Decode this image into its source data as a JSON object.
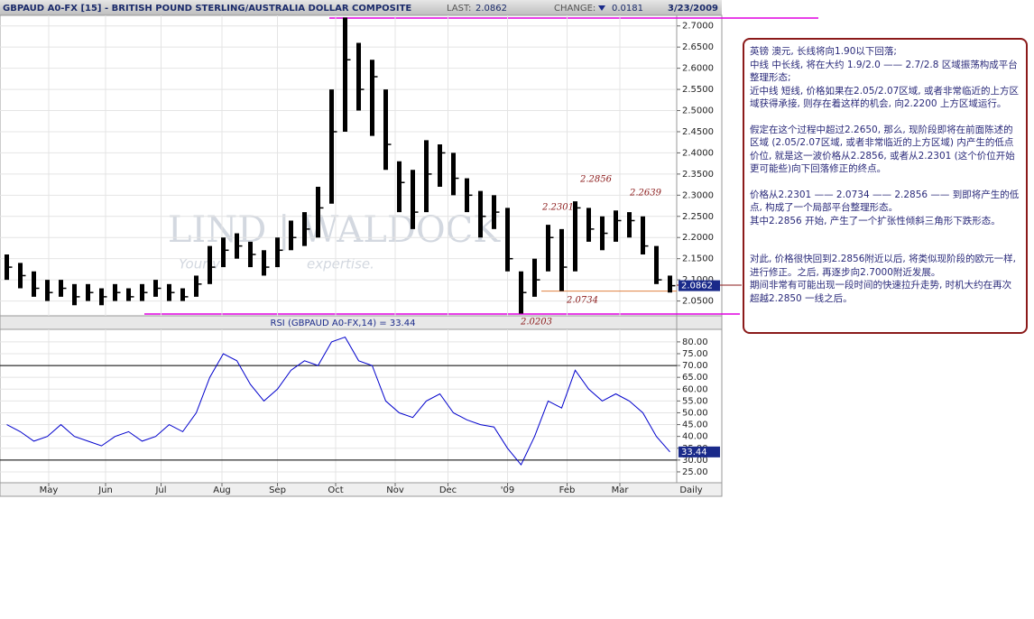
{
  "header": {
    "title": "GBPAUD A0-FX [15] - BRITISH POUND STERLING/AUSTRALIA DOLLAR COMPOSITE",
    "last_label": "LAST:",
    "last_value": 2.0862,
    "change_label": "CHANGE:",
    "change_value": 0.0181,
    "date": "3/23/2009"
  },
  "watermark": {
    "brand": "LIND | WALDOCK",
    "tagline_parts": [
      "Your v",
      "expertise."
    ]
  },
  "chart_data": [
    {
      "type": "ohlc",
      "high": [
        2.16,
        2.14,
        2.12,
        2.1,
        2.1,
        2.09,
        2.09,
        2.08,
        2.09,
        2.08,
        2.09,
        2.1,
        2.09,
        2.08,
        2.11,
        2.18,
        2.2,
        2.21,
        2.19,
        2.17,
        2.2,
        2.24,
        2.26,
        2.32,
        2.55,
        2.72,
        2.66,
        2.62,
        2.55,
        2.38,
        2.36,
        2.43,
        2.42,
        2.4,
        2.34,
        2.31,
        2.3,
        2.27,
        2.12,
        2.15,
        2.23,
        2.22,
        2.2856,
        2.27,
        2.25,
        2.2639,
        2.26,
        2.25,
        2.18,
        2.11
      ],
      "low": [
        2.1,
        2.08,
        2.06,
        2.05,
        2.06,
        2.04,
        2.05,
        2.04,
        2.05,
        2.05,
        2.05,
        2.06,
        2.05,
        2.05,
        2.06,
        2.09,
        2.13,
        2.15,
        2.13,
        2.11,
        2.13,
        2.17,
        2.18,
        2.2,
        2.28,
        2.45,
        2.5,
        2.44,
        2.36,
        2.26,
        2.22,
        2.26,
        2.32,
        2.3,
        2.26,
        2.2,
        2.22,
        2.12,
        2.0203,
        2.06,
        2.12,
        2.0734,
        2.12,
        2.19,
        2.17,
        2.19,
        2.2,
        2.16,
        2.09,
        2.07
      ],
      "close": [
        2.13,
        2.11,
        2.08,
        2.07,
        2.08,
        2.06,
        2.07,
        2.06,
        2.07,
        2.06,
        2.07,
        2.08,
        2.07,
        2.06,
        2.09,
        2.13,
        2.17,
        2.18,
        2.16,
        2.13,
        2.17,
        2.2,
        2.22,
        2.27,
        2.45,
        2.62,
        2.55,
        2.58,
        2.42,
        2.33,
        2.26,
        2.35,
        2.4,
        2.34,
        2.3,
        2.25,
        2.26,
        2.15,
        2.07,
        2.1,
        2.2,
        2.13,
        2.27,
        2.22,
        2.21,
        2.24,
        2.24,
        2.18,
        2.1,
        2.0862
      ],
      "color": "#000000",
      "xlim": [
        -0.5,
        49.5
      ],
      "ylim": [
        2.015,
        2.725
      ],
      "yticks": [
        {
          "value": 2.05,
          "label": "2.0500"
        },
        {
          "value": 2.1,
          "label": "2.1000"
        },
        {
          "value": 2.15,
          "label": "2.1500"
        },
        {
          "value": 2.2,
          "label": "2.2000"
        },
        {
          "value": 2.25,
          "label": "2.2500"
        },
        {
          "value": 2.3,
          "label": "2.3000"
        },
        {
          "value": 2.35,
          "label": "2.3500"
        },
        {
          "value": 2.4,
          "label": "2.4000"
        },
        {
          "value": 2.45,
          "label": "2.4500"
        },
        {
          "value": 2.5,
          "label": "2.5000"
        },
        {
          "value": 2.55,
          "label": "2.5500"
        },
        {
          "value": 2.6,
          "label": "2.6000"
        },
        {
          "value": 2.65,
          "label": "2.6500"
        },
        {
          "value": 2.7,
          "label": "2.7000"
        }
      ],
      "annotations": [
        2.2856,
        2.2301,
        2.2639,
        2.0734,
        2.0203
      ],
      "support_line": 2.0734,
      "grid": true
    },
    {
      "type": "line",
      "title": "RSI (GBPAUD A0-FX,14) = 33.44",
      "values": [
        45,
        42,
        38,
        40,
        45,
        40,
        38,
        36,
        40,
        42,
        38,
        40,
        45,
        42,
        50,
        65,
        75,
        72,
        62,
        55,
        60,
        68,
        72,
        70,
        80,
        82,
        72,
        70,
        55,
        50,
        48,
        55,
        58,
        50,
        47,
        45,
        44,
        35,
        28,
        40,
        55,
        52,
        68,
        60,
        55,
        58,
        55,
        50,
        40,
        33.44
      ],
      "color": "#0000cc",
      "xlim": [
        -0.5,
        49.5
      ],
      "ylim": [
        20.4,
        85.3
      ],
      "yticks": [
        {
          "value": 25,
          "label": "25.00"
        },
        {
          "value": 30,
          "label": "30.00"
        },
        {
          "value": 35,
          "label": "35.00"
        },
        {
          "value": 40,
          "label": "40.00"
        },
        {
          "value": 45,
          "label": "45.00"
        },
        {
          "value": 50,
          "label": "50.00"
        },
        {
          "value": 55,
          "label": "55.00"
        },
        {
          "value": 60,
          "label": "60.00"
        },
        {
          "value": 65,
          "label": "65.00"
        },
        {
          "value": 70,
          "label": "70.00"
        },
        {
          "value": 75,
          "label": "75.00"
        },
        {
          "value": 80,
          "label": "80.00"
        }
      ],
      "ref_lines": [
        30,
        70
      ],
      "xticks": [
        {
          "value": 3.1,
          "label": "May"
        },
        {
          "value": 7.3,
          "label": "Jun"
        },
        {
          "value": 11.4,
          "label": "Jul"
        },
        {
          "value": 15.9,
          "label": "Aug"
        },
        {
          "value": 20,
          "label": "Sep"
        },
        {
          "value": 24.3,
          "label": "Oct"
        },
        {
          "value": 28.7,
          "label": "Nov"
        },
        {
          "value": 32.6,
          "label": "Dec"
        },
        {
          "value": 37,
          "label": "'09"
        },
        {
          "value": 41.4,
          "label": "Feb"
        },
        {
          "value": 45.3,
          "label": "Mar"
        }
      ],
      "period_label": "Daily",
      "grid": true
    }
  ],
  "notes": {
    "paragraphs": [
      "英镑 澳元, 长线将向1.90以下回落;",
      "中线 中长线, 将在大约 1.9/2.0 —— 2.7/2.8 区域振荡构成平台整理形态;",
      "近中线 短线, 价格如果在2.05/2.07区域, 或者非常临近的上方区域获得承接, 则存在着这样的机会, 向2.2200 上方区域运行。",
      "假定在这个过程中超过2.2650, 那么, 现阶段即将在前面陈述的区域 (2.05/2.07区域, 或者非常临近的上方区域) 内产生的低点价位, 就是这一波价格从2.2856, 或者从2.2301 (这个价位开始更可能些)向下回落修正的终点。",
      "价格从2.2301 —— 2.0734 —— 2.2856 —— 到即将产生的低点, 构成了一个局部平台整理形态。",
      "其中2.2856 开始, 产生了一个扩张性倾斜三角形下跌形态。",
      "对此, 价格很快回到2.2856附近以后, 将类似现阶段的欧元一样, 进行修正。之后, 再逐步向2.7000附近发展。",
      "期间非常有可能出现一段时间的快速拉升走势, 时机大约在再次超越2.2850 一线之后。"
    ]
  }
}
